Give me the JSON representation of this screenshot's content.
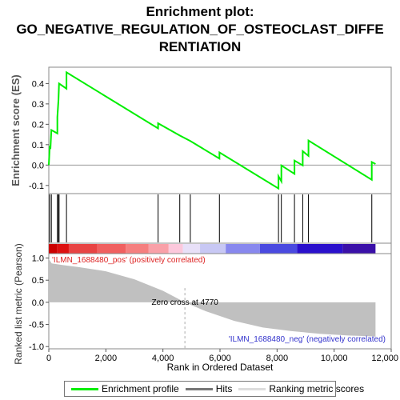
{
  "chart_data": {
    "type": "line",
    "title_lines": [
      "Enrichment plot:",
      "GO_NEGATIVE_REGULATION_OF_OSTEOCLAST_DIFFE",
      "RENTIATION"
    ],
    "xlabel": "Rank in Ordered Dataset",
    "es_ylabel": "Enrichment score (ES)",
    "metric_ylabel": "Ranked list metric (Pearson)",
    "xlim": [
      0,
      12000
    ],
    "x_ticks": [
      0,
      2000,
      4000,
      6000,
      8000,
      10000,
      12000
    ],
    "x_tick_labels": [
      "0",
      "2,000",
      "4,000",
      "6,000",
      "8,000",
      "10,000",
      "12,000"
    ],
    "es_ylim": [
      -0.14,
      0.48
    ],
    "es_ticks": [
      -0.1,
      0.0,
      0.1,
      0.2,
      0.3,
      0.4
    ],
    "es_tick_labels": [
      "-0.1",
      "0.0",
      "0.1",
      "0.2",
      "0.3",
      "0.4"
    ],
    "metric_ylim": [
      -1.05,
      1.1
    ],
    "metric_ticks": [
      -1.0,
      -0.5,
      0.0,
      0.5,
      1.0
    ],
    "metric_tick_labels": [
      "-1.0",
      "-0.5",
      "0.0",
      "0.5",
      "1.0"
    ],
    "total_ranks": 11450,
    "hits": [
      30,
      90,
      300,
      340,
      360,
      620,
      3830,
      4590,
      4960,
      5980,
      8050,
      8150,
      8610,
      8900,
      9100,
      11320
    ],
    "enrichment_profile": [
      [
        0,
        0.0
      ],
      [
        30,
        0.088
      ],
      [
        60,
        0.085
      ],
      [
        90,
        0.172
      ],
      [
        300,
        0.155
      ],
      [
        300,
        0.235
      ],
      [
        340,
        0.32
      ],
      [
        360,
        0.4
      ],
      [
        620,
        0.375
      ],
      [
        620,
        0.455
      ],
      [
        3830,
        0.18
      ],
      [
        3830,
        0.205
      ],
      [
        4590,
        0.145
      ],
      [
        4960,
        0.118
      ],
      [
        5980,
        0.032
      ],
      [
        5980,
        0.062
      ],
      [
        8050,
        -0.115
      ],
      [
        8050,
        -0.055
      ],
      [
        8150,
        -0.08
      ],
      [
        8150,
        -0.002
      ],
      [
        8610,
        -0.043
      ],
      [
        8610,
        0.022
      ],
      [
        8900,
        -0.002
      ],
      [
        8900,
        0.068
      ],
      [
        9100,
        0.045
      ],
      [
        9100,
        0.12
      ],
      [
        11320,
        -0.072
      ],
      [
        11320,
        0.015
      ],
      [
        11450,
        0.005
      ]
    ],
    "ranked_metric": [
      [
        0,
        0.98
      ],
      [
        100,
        0.88
      ],
      [
        500,
        0.84
      ],
      [
        1000,
        0.8
      ],
      [
        2000,
        0.7
      ],
      [
        3000,
        0.52
      ],
      [
        4000,
        0.26
      ],
      [
        4770,
        0.0
      ],
      [
        5500,
        -0.2
      ],
      [
        6500,
        -0.42
      ],
      [
        7500,
        -0.57
      ],
      [
        8500,
        -0.65
      ],
      [
        9500,
        -0.71
      ],
      [
        10500,
        -0.75
      ],
      [
        11400,
        -0.77
      ],
      [
        11450,
        -0.78
      ]
    ],
    "zero_cross_label": "Zero cross at 4770",
    "zero_cross_x": 4770,
    "pos_label": "'ILMN_1688480_pos' (positively correlated)",
    "neg_label": "'ILMN_1688480_neg' (negatively correlated)",
    "heatmap_segments": [
      [
        0,
        300,
        "#cc0000"
      ],
      [
        300,
        700,
        "#dd1111"
      ],
      [
        700,
        1700,
        "#e84444"
      ],
      [
        1700,
        2700,
        "#f06060"
      ],
      [
        2700,
        3500,
        "#f57f7f"
      ],
      [
        3500,
        4200,
        "#f9a0a8"
      ],
      [
        4200,
        4700,
        "#fcc8dc"
      ],
      [
        4700,
        5300,
        "#e8e0f8"
      ],
      [
        5300,
        6200,
        "#c8c8f4"
      ],
      [
        6200,
        7400,
        "#8888ee"
      ],
      [
        7400,
        8700,
        "#4a4ae0"
      ],
      [
        8700,
        10300,
        "#2a10cc"
      ],
      [
        10300,
        11450,
        "#3a10a8"
      ]
    ],
    "legend": {
      "profile": "Enrichment profile",
      "hits": "Hits",
      "metric": "Ranking metric scores"
    },
    "colors": {
      "profile": "#00ee00",
      "hits": "#000000",
      "metric_fill": "#c0c0c0",
      "pos_text": "#dd2222",
      "neg_text": "#3333cc"
    }
  }
}
